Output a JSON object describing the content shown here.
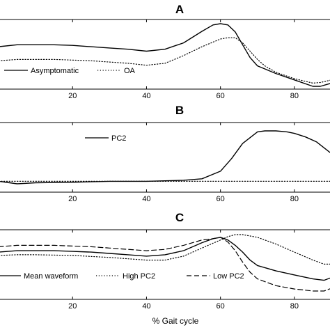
{
  "chart_data": [
    {
      "type": "line",
      "title": "A",
      "xlabel": "",
      "xlim": [
        0,
        90
      ],
      "xticks": [
        20,
        40,
        60,
        80
      ],
      "legend": {
        "placement": "bottom-left",
        "entries": [
          "Asymptomatic",
          "OA"
        ]
      },
      "series": [
        {
          "name": "Asymptomatic",
          "style": "solid",
          "x": [
            0,
            5,
            10,
            15,
            20,
            25,
            30,
            35,
            40,
            45,
            50,
            55,
            58,
            60,
            62,
            64,
            66,
            68,
            70,
            75,
            80,
            85,
            87,
            90
          ],
          "y": [
            0.62,
            0.65,
            0.65,
            0.65,
            0.64,
            0.62,
            0.6,
            0.58,
            0.55,
            0.58,
            0.68,
            0.86,
            0.96,
            0.98,
            0.96,
            0.85,
            0.65,
            0.45,
            0.32,
            0.2,
            0.1,
            0.0,
            0.0,
            0.05
          ]
        },
        {
          "name": "OA",
          "style": "dotted",
          "x": [
            0,
            5,
            10,
            15,
            20,
            25,
            30,
            35,
            40,
            45,
            50,
            55,
            60,
            62,
            64,
            66,
            68,
            70,
            72,
            75,
            80,
            85,
            87,
            90
          ],
          "y": [
            0.4,
            0.42,
            0.42,
            0.42,
            0.41,
            0.4,
            0.38,
            0.36,
            0.33,
            0.36,
            0.48,
            0.62,
            0.74,
            0.76,
            0.76,
            0.68,
            0.55,
            0.42,
            0.32,
            0.22,
            0.12,
            0.05,
            0.06,
            0.1
          ]
        }
      ]
    },
    {
      "type": "line",
      "title": "B",
      "xlabel": "",
      "xlim": [
        0,
        90
      ],
      "xticks": [
        20,
        40,
        60,
        80
      ],
      "legend": {
        "placement": "top-center",
        "entries": [
          "PC2"
        ]
      },
      "series": [
        {
          "name": "PC2",
          "style": "solid",
          "x": [
            0,
            5,
            10,
            20,
            30,
            40,
            50,
            55,
            60,
            63,
            66,
            70,
            72,
            75,
            78,
            80,
            83,
            86,
            90
          ],
          "y": [
            0.0,
            -0.05,
            -0.03,
            -0.02,
            0.0,
            0.0,
            0.02,
            0.05,
            0.2,
            0.45,
            0.75,
            0.98,
            1.0,
            1.0,
            0.98,
            0.95,
            0.88,
            0.78,
            0.55
          ]
        },
        {
          "name": "",
          "style": "dotted",
          "x": [
            0,
            90
          ],
          "y": [
            0.0,
            0.0
          ]
        }
      ]
    },
    {
      "type": "line",
      "title": "C",
      "xlabel": "% Gait cycle",
      "xlim": [
        0,
        90
      ],
      "xticks": [
        20,
        40,
        60,
        80
      ],
      "legend": {
        "placement": "bottom",
        "entries": [
          "Mean waveform",
          "High PC2",
          "Low PC2"
        ]
      },
      "series": [
        {
          "name": "Mean waveform",
          "style": "solid",
          "x": [
            0,
            5,
            10,
            15,
            20,
            25,
            30,
            35,
            40,
            45,
            50,
            55,
            58,
            60,
            62,
            64,
            66,
            68,
            70,
            75,
            80,
            85,
            88,
            90
          ],
          "y": [
            0.7,
            0.72,
            0.72,
            0.72,
            0.71,
            0.7,
            0.68,
            0.66,
            0.64,
            0.66,
            0.72,
            0.84,
            0.9,
            0.92,
            0.88,
            0.8,
            0.7,
            0.58,
            0.5,
            0.42,
            0.36,
            0.3,
            0.28,
            0.32
          ]
        },
        {
          "name": "High PC2",
          "style": "dotted",
          "x": [
            0,
            5,
            10,
            20,
            30,
            40,
            45,
            50,
            55,
            60,
            62,
            64,
            66,
            70,
            75,
            80,
            85,
            88,
            90
          ],
          "y": [
            0.65,
            0.66,
            0.66,
            0.65,
            0.62,
            0.58,
            0.58,
            0.64,
            0.76,
            0.88,
            0.93,
            0.96,
            0.96,
            0.92,
            0.82,
            0.7,
            0.58,
            0.52,
            0.52
          ]
        },
        {
          "name": "Low PC2",
          "style": "dashed",
          "x": [
            0,
            5,
            10,
            15,
            20,
            25,
            30,
            35,
            40,
            45,
            50,
            55,
            58,
            60,
            62,
            64,
            66,
            68,
            70,
            75,
            80,
            85,
            88,
            90
          ],
          "y": [
            0.78,
            0.8,
            0.8,
            0.8,
            0.79,
            0.78,
            0.76,
            0.74,
            0.72,
            0.74,
            0.8,
            0.88,
            0.9,
            0.92,
            0.85,
            0.72,
            0.55,
            0.4,
            0.3,
            0.2,
            0.15,
            0.12,
            0.12,
            0.16
          ]
        }
      ]
    }
  ]
}
